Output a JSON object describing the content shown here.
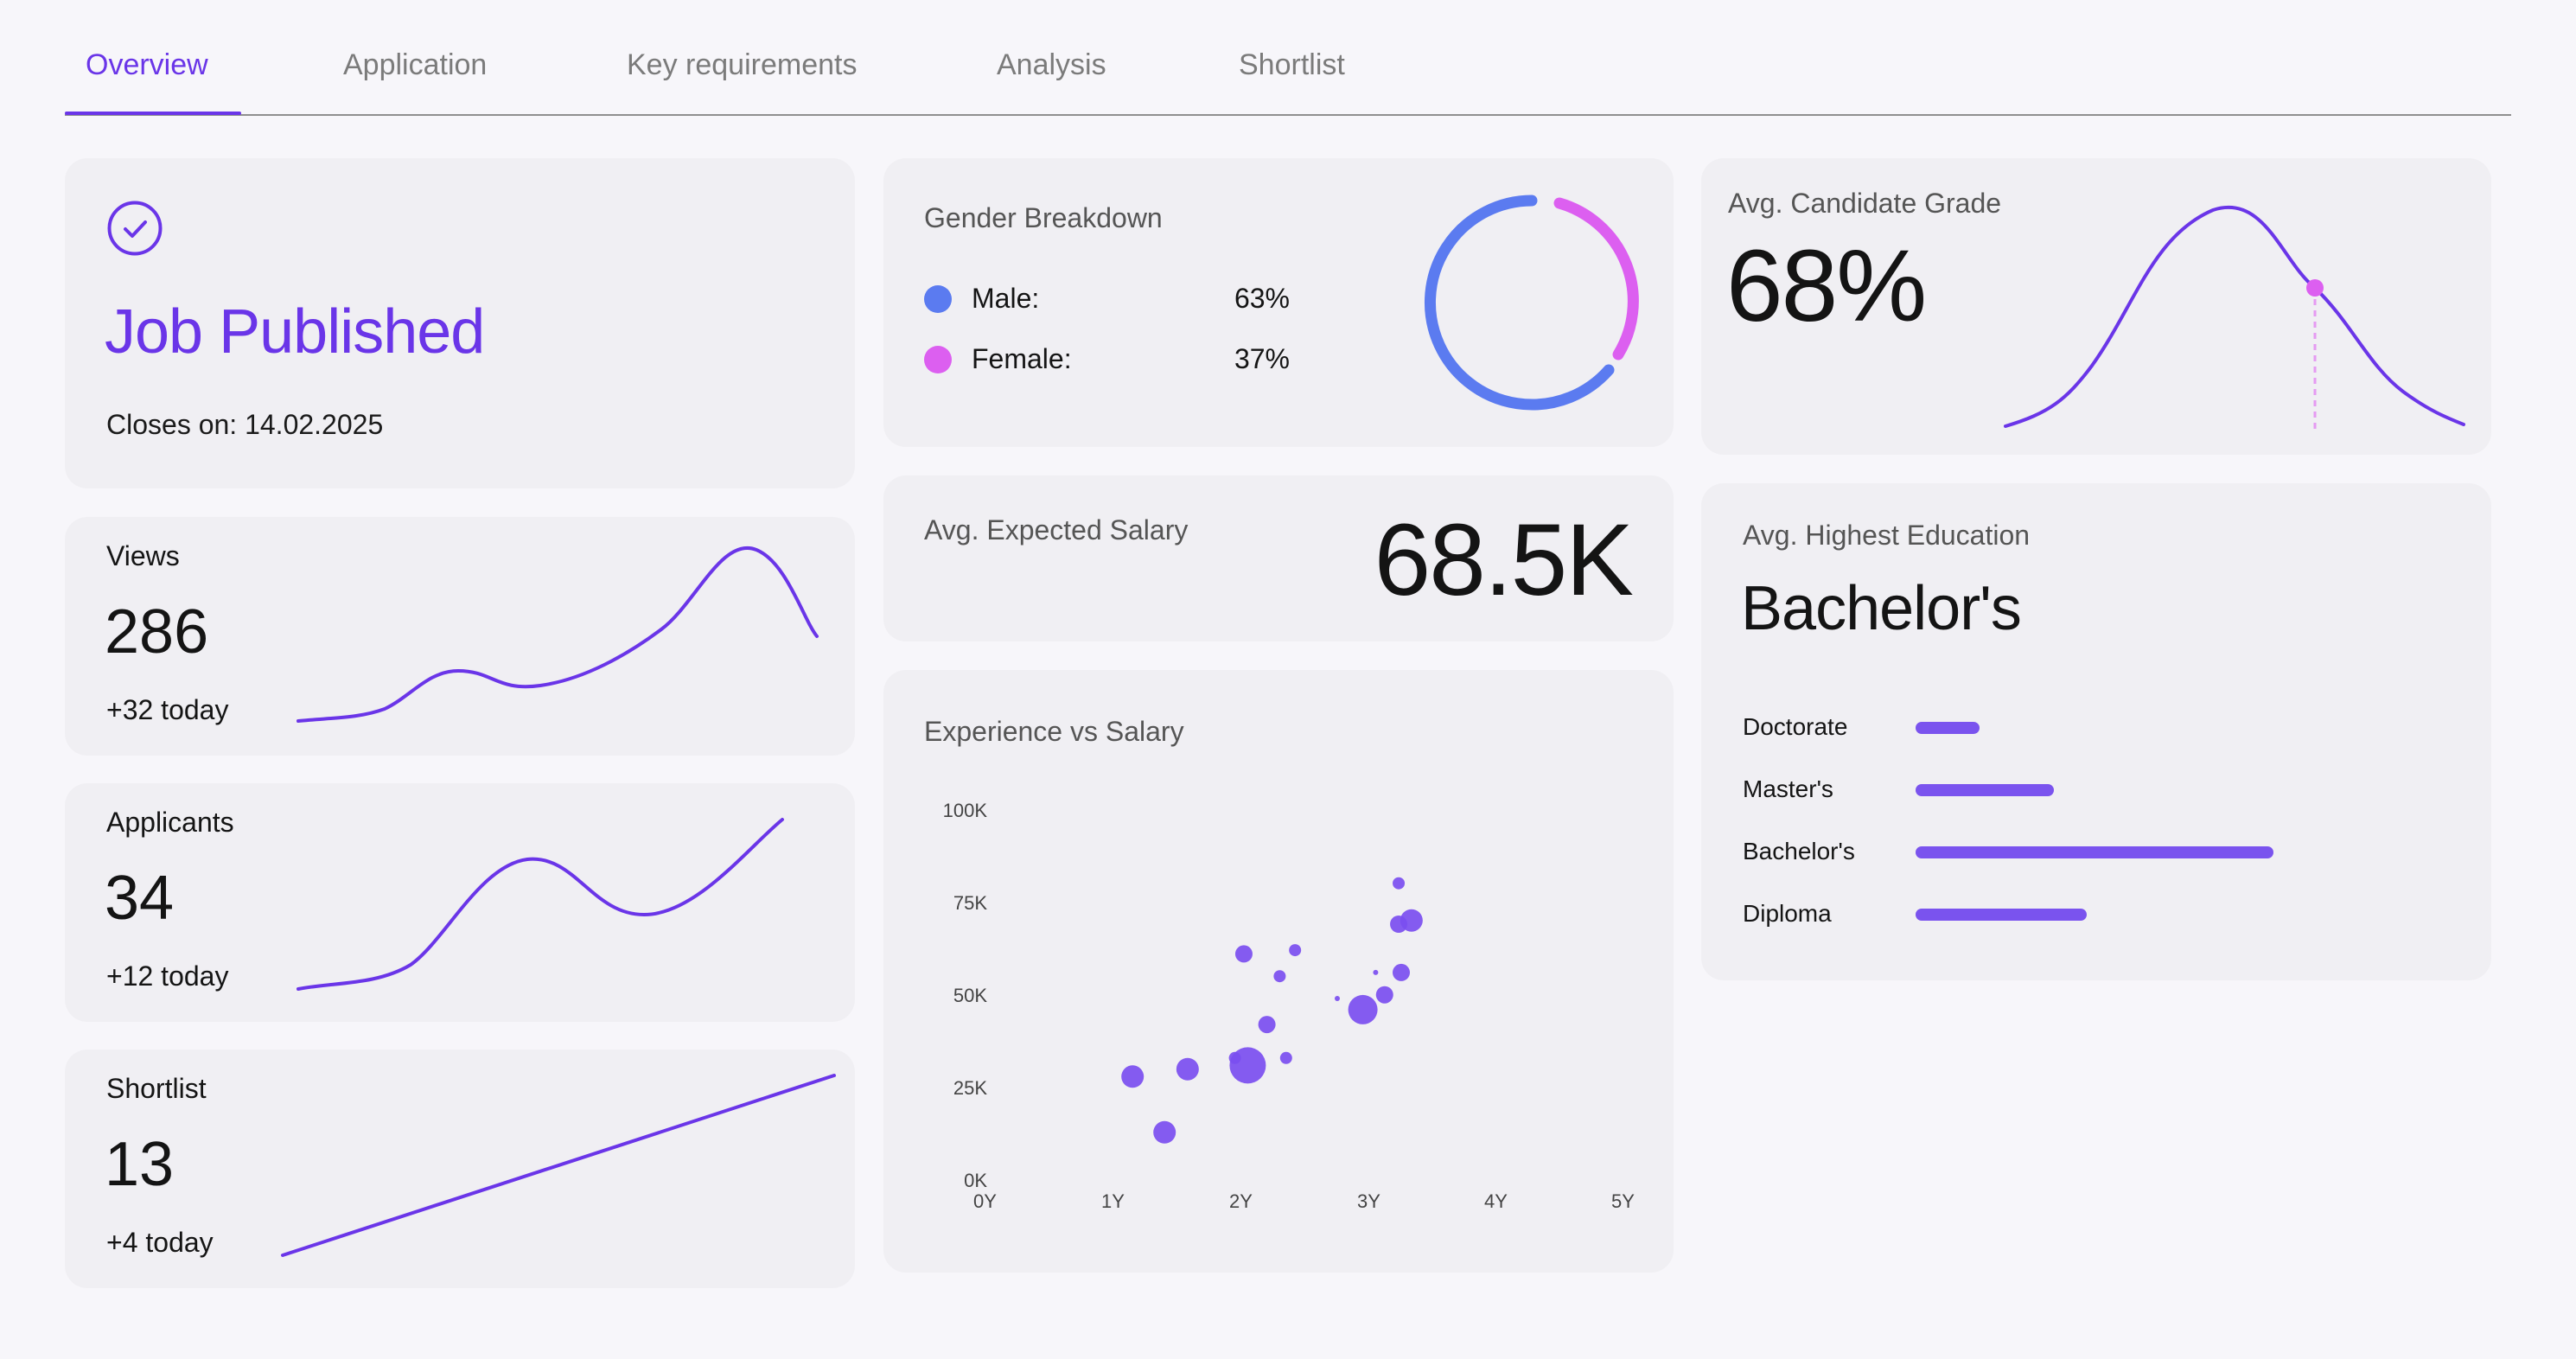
{
  "tabs": [
    {
      "label": "Overview"
    },
    {
      "label": "Application"
    },
    {
      "label": "Key requirements"
    },
    {
      "label": "Analysis"
    },
    {
      "label": "Shortlist"
    }
  ],
  "job": {
    "status": "Job Published",
    "closes": "Closes on: 14.02.2025",
    "icon": "check-circle-icon",
    "accent": "#6a35e8"
  },
  "stats": [
    {
      "label": "Views",
      "value": "286",
      "delta": "+32 today"
    },
    {
      "label": "Applicants",
      "value": "34",
      "delta": "+12 today"
    },
    {
      "label": "Shortlist",
      "value": "13",
      "delta": "+4 today"
    }
  ],
  "gender": {
    "title": "Gender Breakdown",
    "items": [
      {
        "label": "Male:",
        "value": "63%",
        "color": "#5b7bf0"
      },
      {
        "label": "Female:",
        "value": "37%",
        "color": "#dc5ff0"
      }
    ]
  },
  "salary": {
    "title": "Avg. Expected Salary",
    "value": "68.5K"
  },
  "grade": {
    "title": "Avg. Candidate Grade",
    "value": "68%"
  },
  "education": {
    "title": "Avg. Highest Education",
    "value": "Bachelor's",
    "items": [
      {
        "label": "Doctorate"
      },
      {
        "label": "Master's"
      },
      {
        "label": "Bachelor's"
      },
      {
        "label": "Diploma"
      }
    ]
  },
  "chart_data": {
    "type": "scatter",
    "title": "Experience vs Salary",
    "x_ticks": [
      "0Y",
      "1Y",
      "2Y",
      "3Y",
      "4Y",
      "5Y"
    ],
    "y_ticks": [
      "100K",
      "75K",
      "50K",
      "25K",
      "0K"
    ],
    "xlim": [
      0,
      5
    ],
    "ylim": [
      0,
      100
    ],
    "points": [
      {
        "x": 1.15,
        "y": 29,
        "s": 3
      },
      {
        "x": 1.4,
        "y": 14,
        "s": 3
      },
      {
        "x": 1.58,
        "y": 31,
        "s": 3
      },
      {
        "x": 1.95,
        "y": 34,
        "s": 1
      },
      {
        "x": 2.05,
        "y": 32,
        "s": 5
      },
      {
        "x": 2.2,
        "y": 43,
        "s": 2
      },
      {
        "x": 2.35,
        "y": 34,
        "s": 1
      },
      {
        "x": 2.02,
        "y": 62,
        "s": 2
      },
      {
        "x": 2.3,
        "y": 56,
        "s": 1
      },
      {
        "x": 2.42,
        "y": 63,
        "s": 1
      },
      {
        "x": 2.75,
        "y": 50,
        "s": 0
      },
      {
        "x": 2.95,
        "y": 47,
        "s": 4
      },
      {
        "x": 3.05,
        "y": 57,
        "s": 0
      },
      {
        "x": 3.12,
        "y": 51,
        "s": 2
      },
      {
        "x": 3.25,
        "y": 57,
        "s": 2
      },
      {
        "x": 3.23,
        "y": 70,
        "s": 2
      },
      {
        "x": 3.33,
        "y": 71,
        "s": 3
      },
      {
        "x": 3.23,
        "y": 81,
        "s": 1
      }
    ]
  }
}
